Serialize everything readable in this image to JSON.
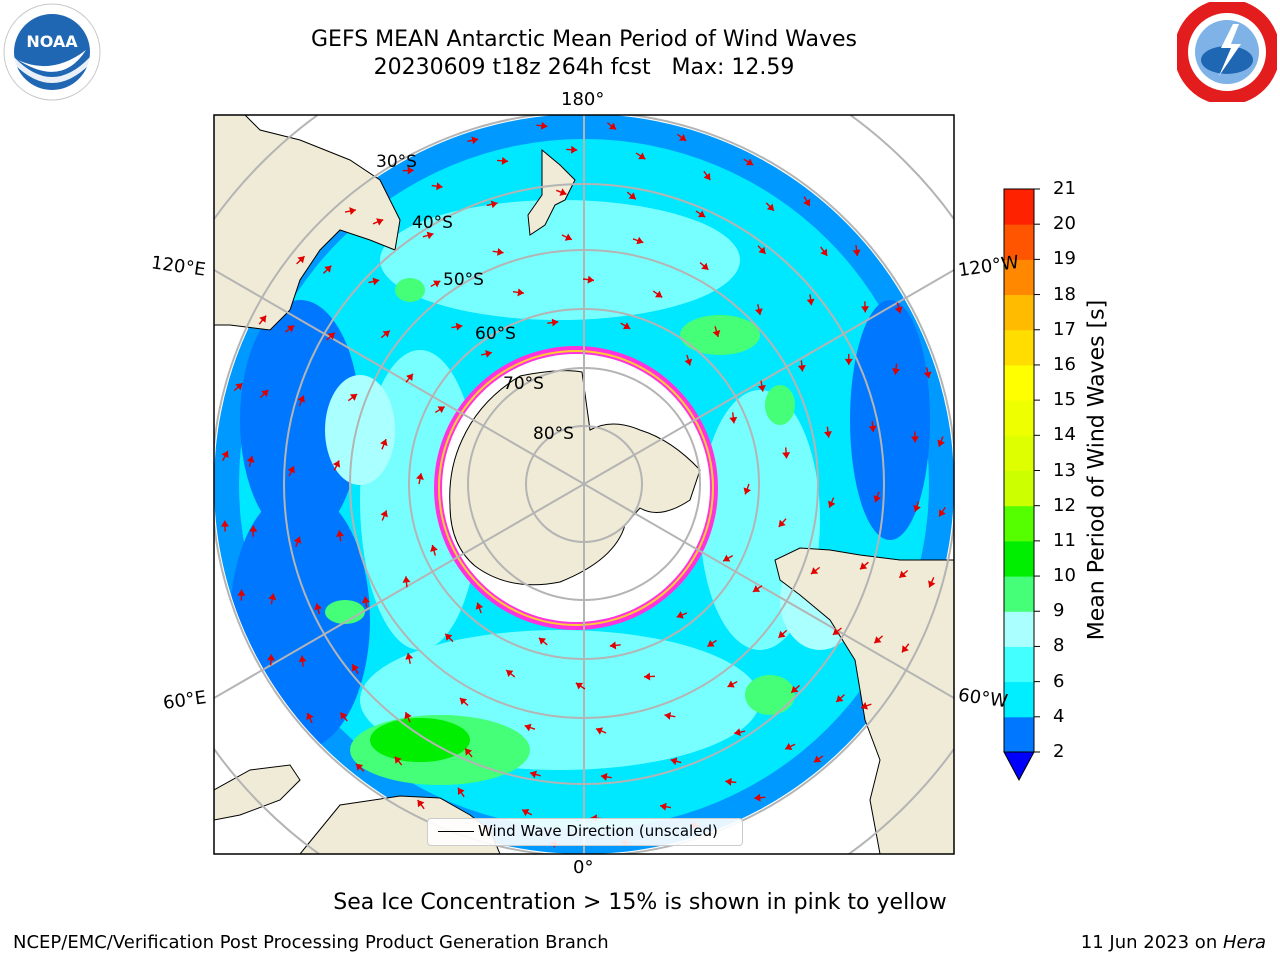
{
  "title": {
    "line1": "GEFS MEAN Antarctic Mean Period of Wind Waves",
    "line2": "20230609 t18z 264h fcst   Max: 12.59"
  },
  "logos": {
    "left": "NOAA",
    "right_icon": "national-weather-service-logo"
  },
  "map": {
    "projection": "south-polar-stereographic",
    "longitude_labels": {
      "top": "180°",
      "upper_left": "120°E",
      "upper_right": "120°W",
      "lower_left": "60°E",
      "lower_right": "60°W",
      "bottom": "0°"
    },
    "latitude_labels": [
      "30°S",
      "40°S",
      "50°S",
      "60°S",
      "70°S",
      "80°S"
    ],
    "colors": {
      "land": "#efebd6",
      "ocean_background": "#ffffff",
      "vectors": "#e00000",
      "graticule": "#b4b4b4",
      "sea_ice_edge": "#ff00ff"
    },
    "legend_label": "Wind Wave Direction (unscaled)"
  },
  "colorbar": {
    "title": "Mean Period of Wind Waves [s]",
    "ticks": [
      "2",
      "4",
      "6",
      "8",
      "9",
      "10",
      "11",
      "12",
      "13",
      "14",
      "15",
      "16",
      "17",
      "18",
      "19",
      "20",
      "21"
    ],
    "colors": [
      "#0077ff",
      "#00eeff",
      "#44ffff",
      "#aaffff",
      "#44ff77",
      "#00ee00",
      "#55ff00",
      "#ccff00",
      "#ddff00",
      "#eeff00",
      "#ffff00",
      "#ffdd00",
      "#ffbb00",
      "#ff8800",
      "#ff5500",
      "#ff2200"
    ],
    "extend_color": "#0000ff"
  },
  "footer": {
    "note": "Sea Ice Concentration > 15% is shown in pink to yellow",
    "credit": "NCEP/EMC/Verification Post Processing Product Generation Branch",
    "date_prefix": "11 Jun 2023 on ",
    "date_machine": "Hera"
  }
}
